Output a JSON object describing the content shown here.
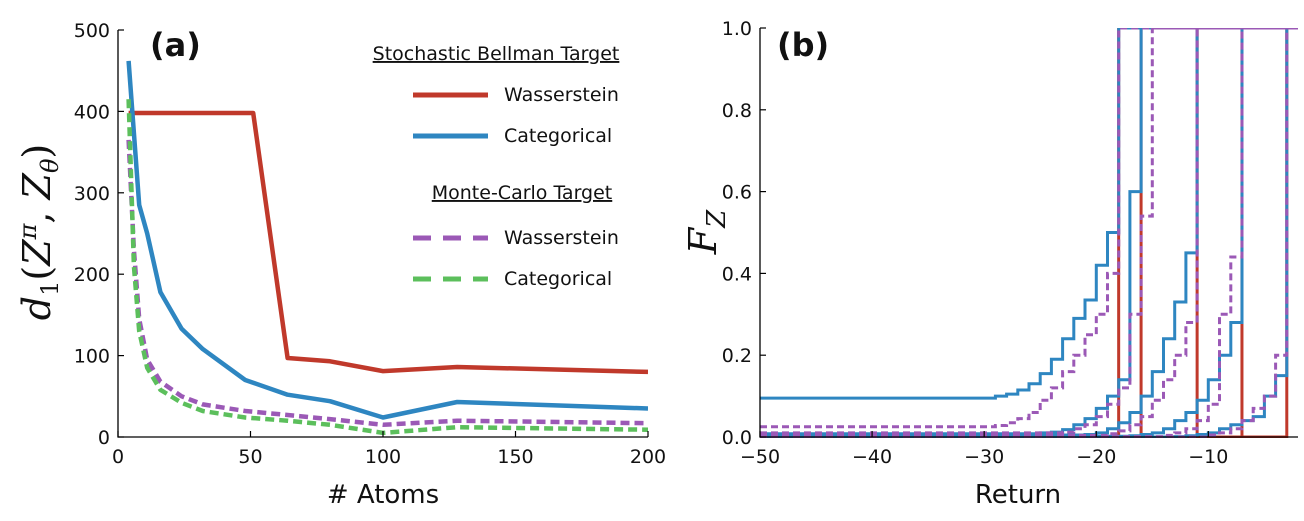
{
  "chart_data": [
    {
      "panel_label": "(a)",
      "type": "line",
      "xlabel": "# Atoms",
      "ylabel": "d_1(Z^π, Z_θ)",
      "xlim": [
        0,
        200
      ],
      "ylim": [
        0,
        500
      ],
      "xticks": [
        "0",
        "50",
        "100",
        "150",
        "200"
      ],
      "yticks": [
        "0",
        "100",
        "200",
        "300",
        "400",
        "500"
      ],
      "legend_position": "top-right",
      "legend_groups": [
        {
          "title": "Stochastic Bellman Target",
          "entries": [
            "Wasserstein",
            "Categorical"
          ]
        },
        {
          "title": "Monte-Carlo Target",
          "entries": [
            "Wasserstein",
            "Categorical"
          ]
        }
      ],
      "series": [
        {
          "name": "Wasserstein",
          "group": "Stochastic Bellman Target",
          "color": "#c0392b",
          "dash": false,
          "x": [
            4,
            8,
            16,
            24,
            32,
            48,
            51,
            64,
            80,
            100,
            128,
            200
          ],
          "y": [
            398,
            398,
            398,
            398,
            398,
            398,
            398,
            97,
            93,
            81,
            86,
            80
          ]
        },
        {
          "name": "Categorical",
          "group": "Stochastic Bellman Target",
          "color": "#2e86c1",
          "dash": false,
          "x": [
            4,
            8,
            11,
            16,
            24,
            32,
            48,
            64,
            80,
            100,
            128,
            200
          ],
          "y": [
            462,
            285,
            250,
            178,
            133,
            108,
            70,
            52,
            44,
            24,
            43,
            35
          ]
        },
        {
          "name": "Wasserstein",
          "group": "Monte-Carlo Target",
          "color": "#9b59b6",
          "dash": true,
          "x": [
            4,
            6,
            8,
            11,
            16,
            24,
            32,
            48,
            64,
            80,
            100,
            128,
            200
          ],
          "y": [
            365,
            230,
            145,
            95,
            68,
            50,
            40,
            32,
            27,
            22,
            15,
            20,
            17
          ]
        },
        {
          "name": "Categorical",
          "group": "Monte-Carlo Target",
          "color": "#5cbf5c",
          "dash": true,
          "x": [
            4,
            6,
            8,
            11,
            16,
            24,
            32,
            48,
            64,
            80,
            100,
            128,
            200
          ],
          "y": [
            415,
            210,
            130,
            85,
            58,
            42,
            32,
            24,
            20,
            15,
            5,
            12,
            9
          ]
        }
      ]
    },
    {
      "panel_label": "(b)",
      "type": "line",
      "xlabel": "Return",
      "ylabel": "F_Z",
      "xlim": [
        -50,
        -2
      ],
      "ylim": [
        0,
        1.0
      ],
      "xticks": [
        "−50",
        "−40",
        "−30",
        "−20",
        "−10"
      ],
      "yticks": [
        "0.0",
        "0.2",
        "0.4",
        "0.6",
        "0.8",
        "1.0"
      ],
      "series": [
        {
          "color": "#c0392b",
          "dash": false,
          "step_at": [
            -18,
            -16,
            -11,
            -7,
            -3
          ]
        },
        {
          "color": "#2e86c1",
          "dash": false,
          "x": [
            -50,
            -29,
            -28,
            -27,
            -26,
            -25,
            -24,
            -23,
            -22,
            -21,
            -20,
            -19,
            -18
          ],
          "y": [
            0.095,
            0.1,
            0.105,
            0.115,
            0.13,
            0.155,
            0.19,
            0.24,
            0.29,
            0.335,
            0.42,
            0.5,
            0.65
          ]
        },
        {
          "color": "#2e86c1",
          "dash": false,
          "x": [
            -50,
            -25,
            -24,
            -23,
            -22,
            -21,
            -20,
            -19,
            -18,
            -17,
            -16
          ],
          "y": [
            0.008,
            0.01,
            0.012,
            0.018,
            0.03,
            0.045,
            0.07,
            0.1,
            0.14,
            0.6,
            0.8
          ]
        },
        {
          "color": "#2e86c1",
          "dash": false,
          "x": [
            -50,
            -21,
            -20,
            -19,
            -18,
            -17,
            -16,
            -15,
            -14,
            -13,
            -12,
            -11
          ],
          "y": [
            0.005,
            0.006,
            0.01,
            0.02,
            0.035,
            0.06,
            0.1,
            0.16,
            0.24,
            0.33,
            0.45,
            0.65
          ]
        },
        {
          "color": "#2e86c1",
          "dash": false,
          "x": [
            -50,
            -17,
            -16,
            -15,
            -14,
            -13,
            -12,
            -11,
            -10,
            -9,
            -8,
            -7
          ],
          "y": [
            0.002,
            0.003,
            0.006,
            0.01,
            0.02,
            0.04,
            0.06,
            0.09,
            0.14,
            0.2,
            0.28,
            0.33
          ]
        },
        {
          "color": "#2e86c1",
          "dash": false,
          "x": [
            -50,
            -13,
            -12,
            -11,
            -10,
            -9,
            -8,
            -7,
            -6,
            -5,
            -4,
            -3
          ],
          "y": [
            0.0,
            0.001,
            0.003,
            0.006,
            0.01,
            0.02,
            0.03,
            0.04,
            0.05,
            0.1,
            0.15,
            0.19
          ]
        },
        {
          "color": "#9b59b6",
          "dash": true,
          "x": [
            -50,
            -29,
            -28,
            -27,
            -26,
            -25,
            -24,
            -23,
            -22,
            -21,
            -20,
            -19,
            -18
          ],
          "y": [
            0.025,
            0.028,
            0.035,
            0.045,
            0.06,
            0.09,
            0.12,
            0.16,
            0.2,
            0.25,
            0.3,
            0.4,
            0.55
          ]
        },
        {
          "color": "#9b59b6",
          "dash": true,
          "x": [
            -50,
            -23,
            -22,
            -21,
            -20,
            -19,
            -18,
            -17,
            -16,
            -15
          ],
          "y": [
            0.01,
            0.012,
            0.02,
            0.03,
            0.05,
            0.08,
            0.12,
            0.3,
            0.54,
            0.72
          ]
        },
        {
          "color": "#9b59b6",
          "dash": true,
          "x": [
            -50,
            -19,
            -18,
            -17,
            -16,
            -15,
            -14,
            -13,
            -12,
            -11
          ],
          "y": [
            0.004,
            0.008,
            0.015,
            0.03,
            0.05,
            0.09,
            0.14,
            0.2,
            0.28,
            0.55
          ]
        },
        {
          "color": "#9b59b6",
          "dash": true,
          "x": [
            -50,
            -14,
            -13,
            -12,
            -11,
            -10,
            -9,
            -8,
            -7
          ],
          "y": [
            0.001,
            0.004,
            0.01,
            0.02,
            0.04,
            0.08,
            0.3,
            0.44,
            0.6
          ]
        },
        {
          "color": "#9b59b6",
          "dash": true,
          "x": [
            -50,
            -10,
            -9,
            -8,
            -7,
            -6,
            -5,
            -4,
            -3
          ],
          "y": [
            0.0,
            0.005,
            0.01,
            0.02,
            0.04,
            0.07,
            0.1,
            0.2,
            0.5
          ]
        }
      ]
    }
  ]
}
